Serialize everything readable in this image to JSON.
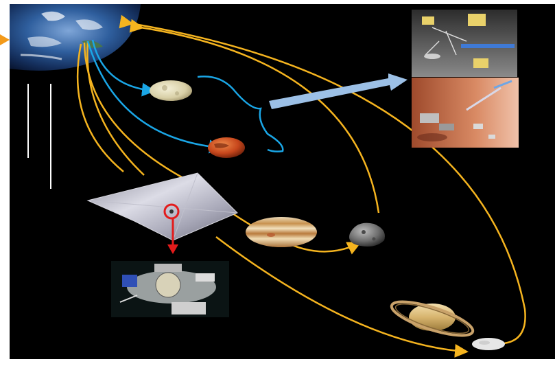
{
  "scene": {
    "background": "#000000",
    "page_background": "#ffffff",
    "colors": {
      "gold_arrow": "#f5b41f",
      "blue_arrow": "#1aa6e6",
      "red_arrow": "#e31b1b",
      "orange_marker": "#f39a1a",
      "big_arrow": "#9cc0e6",
      "white_line": "#ffffff"
    },
    "objects": [
      {
        "name": "earth-globe",
        "icon": "earth"
      },
      {
        "name": "moon",
        "icon": "moon"
      },
      {
        "name": "mars",
        "icon": "mars"
      },
      {
        "name": "jupiter",
        "icon": "jupiter"
      },
      {
        "name": "asteroid",
        "icon": "asteroid"
      },
      {
        "name": "saturn",
        "icon": "saturn"
      },
      {
        "name": "saturn-moon",
        "icon": "moon-grey"
      },
      {
        "name": "solar-sail",
        "icon": "solar-sail"
      },
      {
        "name": "spacecraft-detail",
        "icon": "spacecraft"
      },
      {
        "name": "lunar-surface-scene",
        "icon": "lunar-lander-scene"
      },
      {
        "name": "mars-surface-scene",
        "icon": "mars-rover-scene"
      }
    ]
  }
}
